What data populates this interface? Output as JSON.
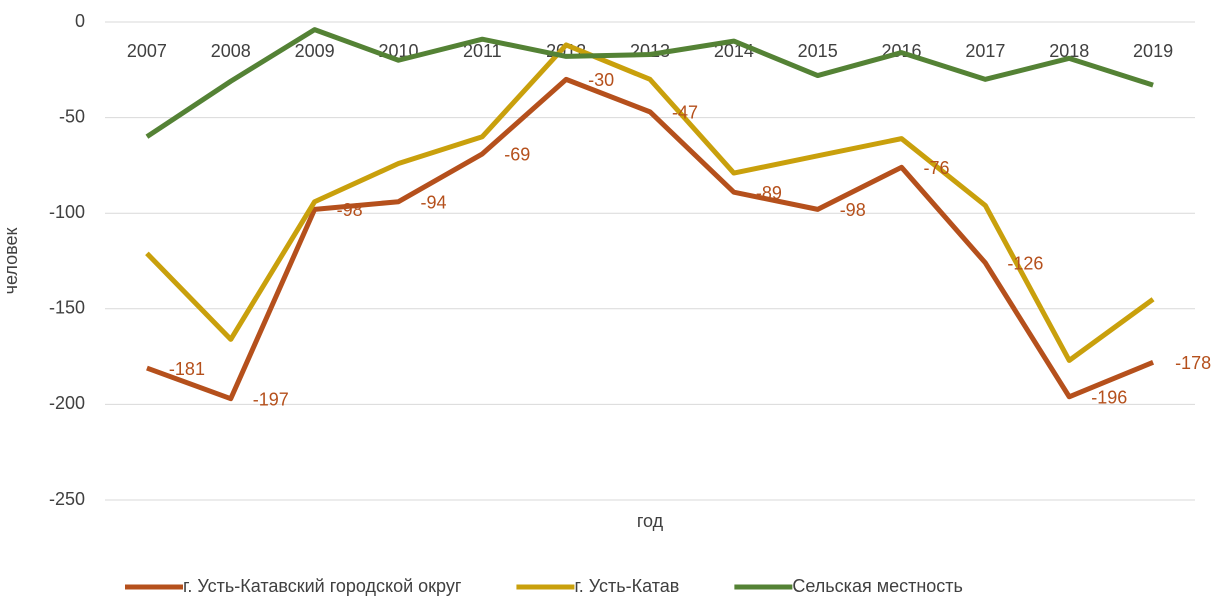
{
  "chart_data": {
    "type": "line",
    "x_label": "год",
    "y_label": "человек",
    "categories": [
      "2007",
      "2008",
      "2009",
      "2010",
      "2011",
      "2012",
      "2013",
      "2014",
      "2015",
      "2016",
      "2017",
      "2018",
      "2019"
    ],
    "series": [
      {
        "name": "г. Усть-Катавский городской округ",
        "color": "#b5501c",
        "values": [
          -181,
          -197,
          -98,
          -94,
          -69,
          -30,
          -47,
          -89,
          -98,
          -76,
          -126,
          -196,
          -178
        ],
        "data_labels": true
      },
      {
        "name": "г. Усть-Катав",
        "color": "#c9a00c",
        "values": [
          -121,
          -166,
          -94,
          -74,
          -60,
          -12,
          -30,
          -79,
          -70,
          -61,
          -96,
          -177,
          -145
        ]
      },
      {
        "name": "Сельская местность",
        "color": "#548235",
        "values": [
          -60,
          -31,
          -4,
          -20,
          -9,
          -18,
          -17,
          -10,
          -28,
          -16,
          -30,
          -19,
          -33
        ]
      }
    ],
    "ylim": [
      -250,
      0
    ],
    "yticks": [
      0,
      -50,
      -100,
      -150,
      -200,
      -250
    ],
    "grid": true,
    "legend": "bottom"
  }
}
